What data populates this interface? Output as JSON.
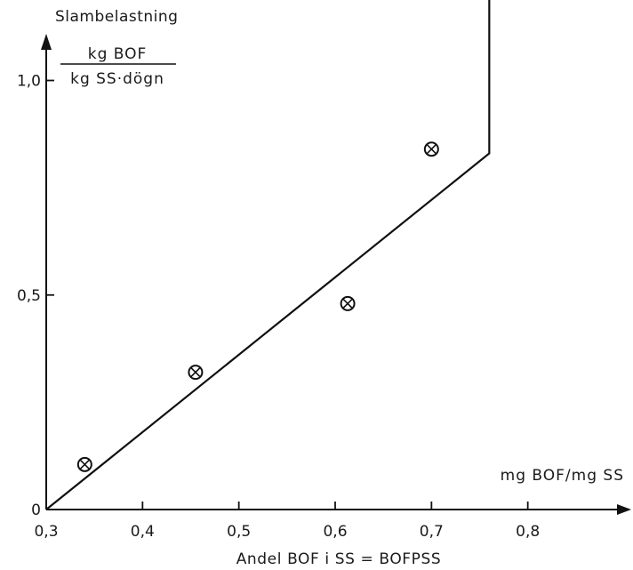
{
  "chart_data": {
    "type": "scatter",
    "title": "Slambelastning",
    "ylabel_numerator": "kg BOF",
    "ylabel_denominator": "kg SS·dögn",
    "xunit": "mg BOF/mg SS",
    "xlabel": "Andel BOF i SS = BOFPSS",
    "xlim": [
      0.3,
      0.9
    ],
    "ylim": [
      0,
      1.2
    ],
    "xticks": [
      {
        "value": 0.3,
        "label": "0,3"
      },
      {
        "value": 0.4,
        "label": "0,4"
      },
      {
        "value": 0.5,
        "label": "0,5"
      },
      {
        "value": 0.6,
        "label": "0,6"
      },
      {
        "value": 0.7,
        "label": "0,7"
      },
      {
        "value": 0.8,
        "label": "0,8"
      }
    ],
    "yticks": [
      {
        "value": 0,
        "label": "0"
      },
      {
        "value": 0.5,
        "label": "0,5"
      },
      {
        "value": 1.0,
        "label": "1,0"
      }
    ],
    "points": [
      {
        "x": 0.34,
        "y": 0.105
      },
      {
        "x": 0.455,
        "y": 0.32
      },
      {
        "x": 0.613,
        "y": 0.48
      },
      {
        "x": 0.7,
        "y": 0.84
      }
    ],
    "curve": [
      {
        "x": 0.3,
        "y": 0.0
      },
      {
        "x": 0.76,
        "y": 0.83
      },
      {
        "x": 0.76,
        "y": 1.2
      }
    ],
    "grid": false,
    "marker": "circled-x"
  }
}
